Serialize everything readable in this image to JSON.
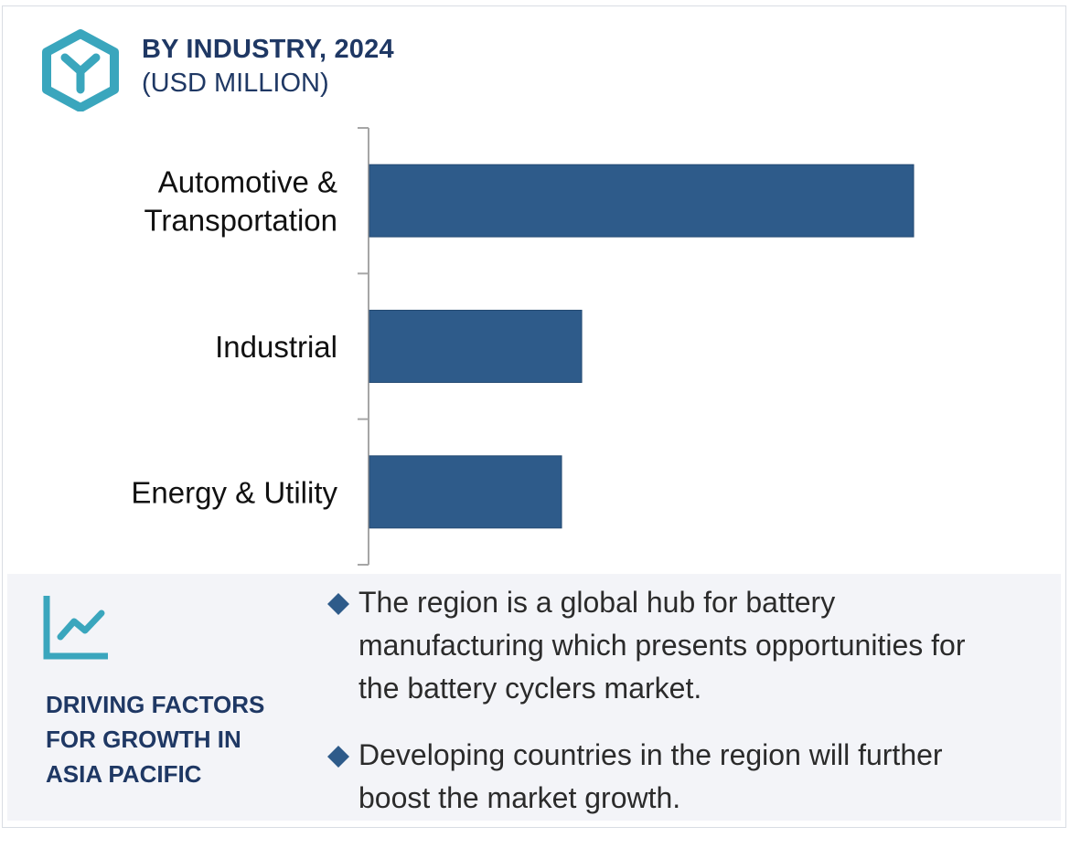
{
  "header": {
    "title": "BY INDUSTRY, 2024",
    "subtitle": "(USD MILLION)"
  },
  "chart_data": {
    "type": "bar",
    "orientation": "horizontal",
    "categories": [
      "Automotive & Transportation",
      "Industrial",
      "Energy & Utility"
    ],
    "category_lines": [
      [
        "Automotive &",
        "Transportation"
      ],
      [
        "Industrial"
      ],
      [
        "Energy & Utility"
      ]
    ],
    "values": [
      100,
      39,
      35.3
    ],
    "value_note": "relative bar lengths; no numeric axis shown",
    "xlim": [
      0,
      100
    ],
    "grid": false,
    "legend": "none",
    "bar_color": "#2e5b8a"
  },
  "drivers": {
    "heading_lines": [
      "DRIVING FACTORS",
      "FOR GROWTH IN",
      "ASIA PACIFIC"
    ],
    "bullets": [
      [
        "The region is a global hub for battery",
        "manufacturing which presents opportunities for",
        "the battery cyclers market."
      ],
      [
        "Developing countries in the region will further",
        "boost the market growth."
      ]
    ]
  },
  "icons": {
    "logo": "hexagon-y-logo-icon",
    "trend": "trend-chart-icon",
    "bullet": "diamond-bullet-icon"
  },
  "colors": {
    "brand_teal": "#3aa6bd",
    "heading_navy": "#1f3864",
    "bar": "#2e5b8a",
    "bullet_diamond": "#2e5b8a",
    "panel_bg": "#f3f4f8"
  }
}
